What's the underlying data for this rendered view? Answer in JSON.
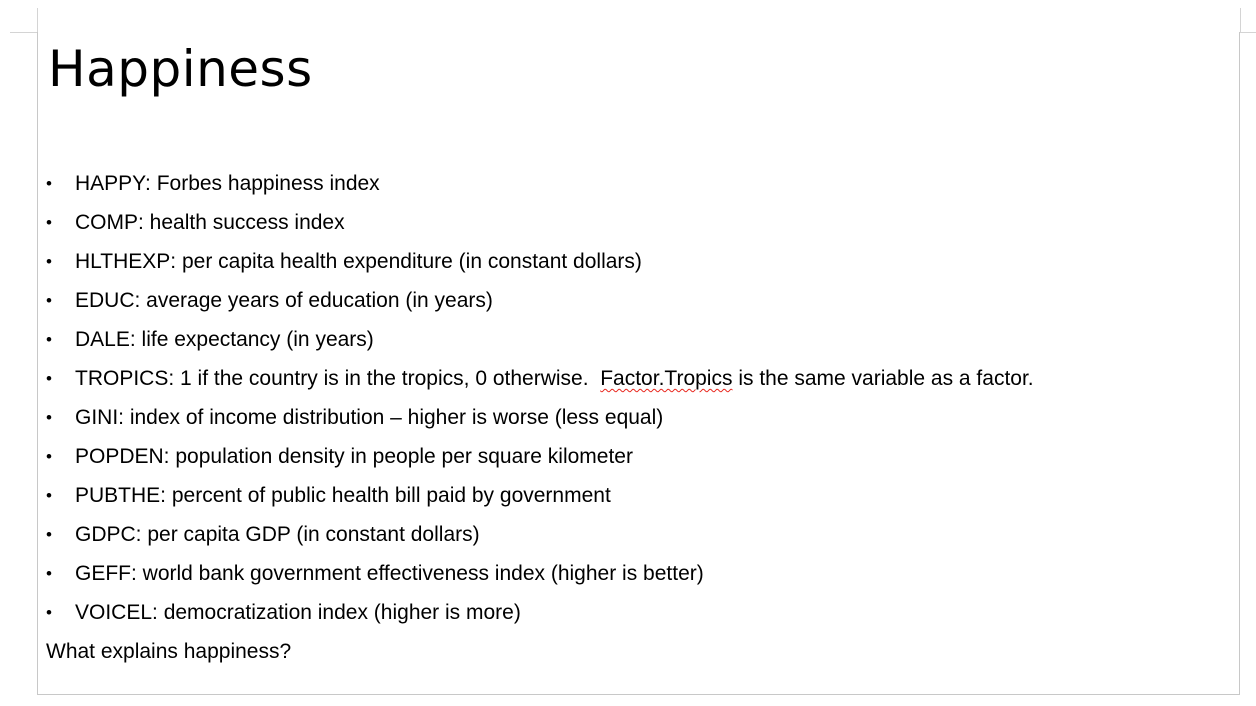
{
  "slide": {
    "title": "Happiness",
    "bullets": [
      {
        "text": "HAPPY: Forbes happiness index"
      },
      {
        "text": "COMP: health success index"
      },
      {
        "text": "HLTHEXP: per capita health expenditure (in constant dollars)"
      },
      {
        "text": "EDUC: average years of education (in years)"
      },
      {
        "text": "DALE: life expectancy (in years)"
      },
      {
        "text_before": "TROPICS: 1 if the country is in the tropics, 0 otherwise.  ",
        "flagged_word": "Factor.Tropics",
        "text_after": " is the same variable as a factor."
      },
      {
        "text": "GINI: index of income distribution – higher is worse (less equal)"
      },
      {
        "text": "POPDEN: population density in people per square kilometer"
      },
      {
        "text": "PUBTHE: percent of public health bill paid by government"
      },
      {
        "text": "GDPC: per capita GDP (in constant dollars)"
      },
      {
        "text": "GEFF: world bank government effectiveness index (higher is better)"
      },
      {
        "text": "VOICEL: democratization index (higher is more)"
      }
    ],
    "bullet_symbol": "•",
    "closing_line": "What explains happiness?"
  },
  "colors": {
    "text": "#000000",
    "slide_border": "#c8c8c8",
    "spellcheck_underline": "#e8251c",
    "background": "#ffffff"
  }
}
